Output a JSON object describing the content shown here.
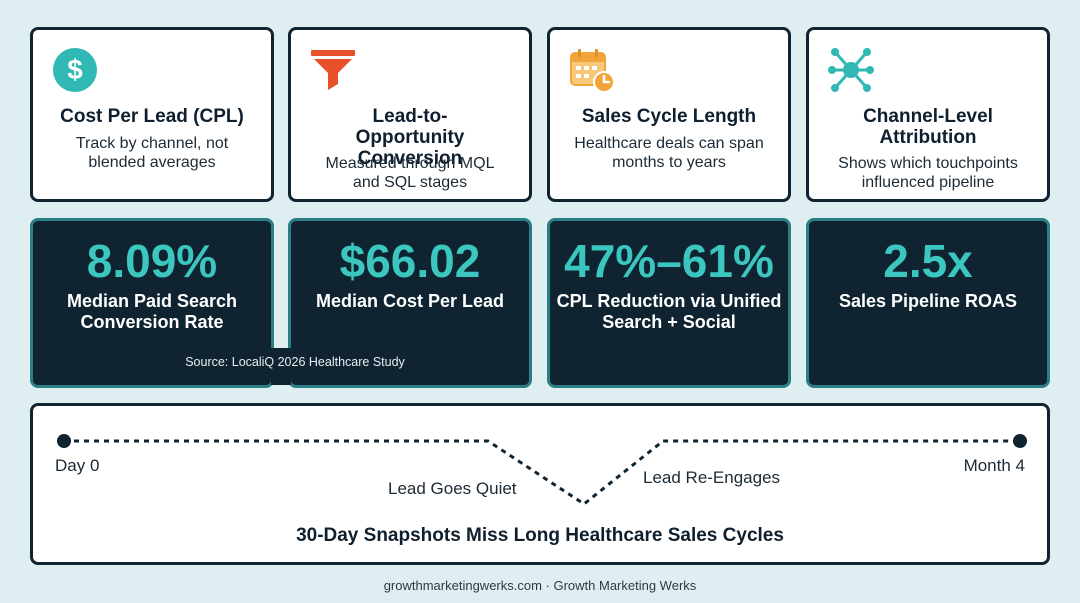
{
  "cards": [
    {
      "icon": "dollar-circle-icon",
      "title": "Cost Per Lead (CPL)",
      "desc": "Track by channel, not blended averages"
    },
    {
      "icon": "funnel-icon",
      "title": "Lead-to-Opportunity Conversion",
      "desc": "Measured through MQL and SQL stages"
    },
    {
      "icon": "calendar-clock-icon",
      "title": "Sales Cycle Length",
      "desc": "Healthcare deals can span months to years"
    },
    {
      "icon": "network-nodes-icon",
      "title": "Channel-Level Attribution",
      "desc": "Shows which touchpoints influenced pipeline"
    }
  ],
  "stats": [
    {
      "value": "8.09%",
      "label": "Median Paid Search Conversion Rate"
    },
    {
      "value": "$66.02",
      "label": "Median Cost Per Lead"
    },
    {
      "value": "47%–61%",
      "label": "CPL Reduction via Unified Search + Social"
    },
    {
      "value": "2.5x",
      "label": "Sales Pipeline ROAS"
    }
  ],
  "source": "Source: LocaliQ 2026 Healthcare Study",
  "timeline": {
    "start_label": "Day 0",
    "end_label": "Month 4",
    "quiet_label": "Lead Goes Quiet",
    "reengage_label": "Lead Re-Engages",
    "title": "30-Day Snapshots Miss Long Healthcare Sales Cycles"
  },
  "footer": "growthmarketingwerks.com · Growth Marketing Werks",
  "colors": {
    "background": "#dfeef1",
    "navy": "#0f2330",
    "teal": "#3cc6c0",
    "funnel_red": "#e8502a",
    "calendar_orange": "#f2a33a"
  }
}
